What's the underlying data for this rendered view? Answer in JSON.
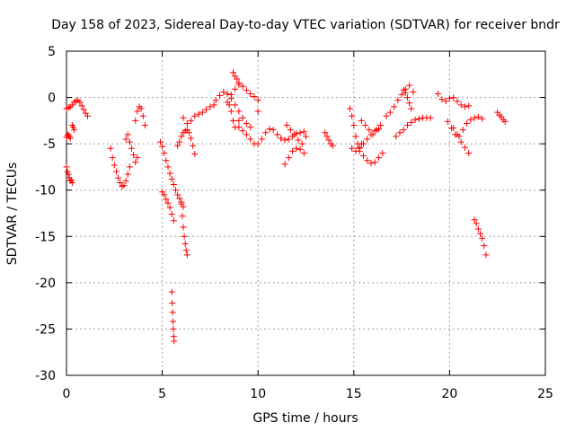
{
  "chart_data": {
    "type": "scatter",
    "title": "Day 158 of 2023, Sidereal Day-to-day VTEC variation (SDTVAR) for receiver bndr",
    "xlabel": "GPS time / hours",
    "ylabel": "SDTVAR / TECUs",
    "xlim": [
      0,
      25
    ],
    "ylim": [
      -30,
      5
    ],
    "xticks": [
      0,
      5,
      10,
      15,
      20,
      25
    ],
    "yticks": [
      -30,
      -25,
      -20,
      -15,
      -10,
      -5,
      0,
      5
    ],
    "xtick_labels": [
      "0",
      "5",
      "10",
      "15",
      "20",
      "25"
    ],
    "ytick_labels": [
      "-30",
      "-25",
      "-20",
      "-15",
      "-10",
      "-5",
      "0",
      "5"
    ],
    "grid": true,
    "marker": "+",
    "color": "#ff0000",
    "series": [
      {
        "name": "s1",
        "x": [
          0.0,
          0.1,
          0.2,
          0.3,
          0.4,
          0.5,
          0.6,
          0.7,
          0.8,
          0.9,
          1.0,
          1.1
        ],
        "y": [
          -1.2,
          -1.1,
          -1.0,
          -0.8,
          -0.5,
          -0.4,
          -0.3,
          -0.5,
          -0.9,
          -1.3,
          -1.7,
          -2.0
        ]
      },
      {
        "name": "s2",
        "x": [
          0.0,
          0.05,
          0.1,
          0.15,
          0.2
        ],
        "y": [
          -4.3,
          -4.1,
          -4.0,
          -4.2,
          -4.4
        ]
      },
      {
        "name": "s3",
        "x": [
          0.3,
          0.35,
          0.4
        ],
        "y": [
          -3.0,
          -3.2,
          -3.5
        ]
      },
      {
        "name": "s4",
        "x": [
          0.0,
          0.05,
          0.1,
          0.15,
          0.2,
          0.25,
          0.3
        ],
        "y": [
          -7.5,
          -8.0,
          -8.3,
          -8.7,
          -9.0,
          -8.9,
          -9.2
        ]
      },
      {
        "name": "s5",
        "x": [
          2.3,
          2.4,
          2.5,
          2.6,
          2.7,
          2.8,
          2.9,
          3.0,
          3.1,
          3.2,
          3.3
        ],
        "y": [
          -5.5,
          -6.5,
          -7.3,
          -8.0,
          -8.7,
          -9.2,
          -9.6,
          -9.5,
          -9.0,
          -8.3,
          -7.5
        ]
      },
      {
        "name": "s6",
        "x": [
          3.1,
          3.2,
          3.3,
          3.4,
          3.5,
          3.6,
          3.7
        ],
        "y": [
          -4.5,
          -4.0,
          -4.8,
          -5.5,
          -6.2,
          -7.0,
          -6.5
        ]
      },
      {
        "name": "s7",
        "x": [
          3.6,
          3.7,
          3.8,
          3.9,
          4.0,
          4.1
        ],
        "y": [
          -2.5,
          -1.5,
          -1.0,
          -1.2,
          -2.0,
          -3.0
        ]
      },
      {
        "name": "s8",
        "x": [
          4.9,
          5.0,
          5.1,
          5.2,
          5.3,
          5.4,
          5.5,
          5.6,
          5.7,
          5.8,
          5.9,
          6.0,
          6.1
        ],
        "y": [
          -4.8,
          -5.3,
          -6.0,
          -6.8,
          -7.5,
          -8.2,
          -8.8,
          -9.4,
          -10.0,
          -10.5,
          -10.9,
          -11.3,
          -11.8
        ]
      },
      {
        "name": "s9",
        "x": [
          5.0,
          5.1,
          5.2,
          5.3,
          5.4,
          5.5,
          5.6
        ],
        "y": [
          -10.2,
          -10.5,
          -11.0,
          -11.4,
          -11.9,
          -12.6,
          -13.3
        ]
      },
      {
        "name": "s10",
        "x": [
          6.0,
          6.05,
          6.1,
          6.15,
          6.2,
          6.25,
          6.3
        ],
        "y": [
          -11.5,
          -12.8,
          -14.0,
          -15.0,
          -15.8,
          -16.5,
          -17.0
        ]
      },
      {
        "name": "s11",
        "x": [
          5.5,
          5.52,
          5.54,
          5.56,
          5.58,
          5.6,
          5.62
        ],
        "y": [
          -21.0,
          -22.2,
          -23.2,
          -24.2,
          -25.0,
          -25.8,
          -26.3
        ]
      },
      {
        "name": "s12",
        "x": [
          5.8,
          5.9,
          6.0,
          6.1,
          6.2,
          6.3,
          6.4,
          6.5,
          6.6,
          6.7
        ],
        "y": [
          -5.2,
          -4.8,
          -4.2,
          -3.8,
          -3.6,
          -3.5,
          -3.8,
          -4.4,
          -5.2,
          -6.1
        ]
      },
      {
        "name": "s13",
        "x": [
          6.1,
          6.3,
          6.5,
          6.7,
          6.9,
          7.1,
          7.3,
          7.5,
          7.7
        ],
        "y": [
          -2.2,
          -2.8,
          -2.5,
          -2.0,
          -1.8,
          -1.6,
          -1.3,
          -1.0,
          -0.8
        ]
      },
      {
        "name": "s14",
        "x": [
          7.8,
          8.0,
          8.2,
          8.4,
          8.6,
          8.8,
          9.0,
          9.2,
          9.4,
          9.6
        ],
        "y": [
          -0.3,
          0.2,
          0.6,
          0.4,
          -0.1,
          -0.8,
          -1.5,
          -2.2,
          -2.8,
          -3.2
        ]
      },
      {
        "name": "s15",
        "x": [
          8.4,
          8.6,
          8.8,
          9.0,
          9.2,
          9.4,
          9.6,
          9.8,
          10.0
        ],
        "y": [
          -0.5,
          0.3,
          0.9,
          1.4,
          1.2,
          0.8,
          0.4,
          0.1,
          -0.3
        ]
      },
      {
        "name": "s16",
        "x": [
          8.7,
          8.8,
          8.9,
          9.0
        ],
        "y": [
          2.7,
          2.3,
          2.0,
          1.6
        ]
      },
      {
        "name": "s17",
        "x": [
          8.5,
          8.6,
          8.7,
          8.8,
          9.0
        ],
        "y": [
          -0.8,
          -1.5,
          -2.5,
          -3.2,
          -2.5
        ]
      },
      {
        "name": "s18",
        "x": [
          9.0,
          9.2,
          9.4,
          9.6,
          9.8,
          10.0,
          10.2,
          10.4,
          10.6,
          10.8,
          11.0,
          11.2
        ],
        "y": [
          -3.2,
          -3.6,
          -4.0,
          -4.5,
          -5.0,
          -5.0,
          -4.5,
          -3.8,
          -3.4,
          -3.5,
          -4.0,
          -4.4
        ]
      },
      {
        "name": "s19",
        "x": [
          10.0
        ],
        "y": [
          -1.5
        ]
      },
      {
        "name": "s20",
        "x": [
          11.2,
          11.4,
          11.6,
          11.8,
          12.0,
          12.2,
          12.4
        ],
        "y": [
          -4.4,
          -4.6,
          -4.5,
          -4.2,
          -3.9,
          -3.8,
          -3.7
        ]
      },
      {
        "name": "s21",
        "x": [
          11.4,
          11.6,
          11.8,
          12.0,
          12.2,
          12.4
        ],
        "y": [
          -7.2,
          -6.5,
          -5.8,
          -5.5,
          -5.6,
          -6.0
        ]
      },
      {
        "name": "s22",
        "x": [
          11.5,
          11.7,
          11.9,
          12.1,
          12.3,
          12.5
        ],
        "y": [
          -3.0,
          -3.5,
          -4.0,
          -4.6,
          -5.0,
          -4.2
        ]
      },
      {
        "name": "s23",
        "x": [
          13.5,
          13.6,
          13.7,
          13.8,
          13.9
        ],
        "y": [
          -3.8,
          -4.2,
          -4.6,
          -5.0,
          -5.2
        ]
      },
      {
        "name": "s24",
        "x": [
          14.8,
          14.9,
          15.0,
          15.1,
          15.2,
          15.3,
          15.4
        ],
        "y": [
          -1.2,
          -2.0,
          -3.0,
          -4.2,
          -5.0,
          -5.4,
          -5.0
        ]
      },
      {
        "name": "s25",
        "x": [
          14.9,
          15.1,
          15.3,
          15.5,
          15.7,
          15.9,
          16.1,
          16.3
        ],
        "y": [
          -5.5,
          -5.8,
          -5.5,
          -5.0,
          -4.5,
          -4.0,
          -3.6,
          -3.4
        ]
      },
      {
        "name": "s26",
        "x": [
          15.3,
          15.5,
          15.7,
          15.9,
          16.1,
          16.3,
          16.5
        ],
        "y": [
          -5.8,
          -6.3,
          -6.8,
          -7.1,
          -7.0,
          -6.5,
          -6.0
        ]
      },
      {
        "name": "s27",
        "x": [
          15.4,
          15.6,
          15.8,
          16.0,
          16.2,
          16.4
        ],
        "y": [
          -2.5,
          -3.0,
          -3.5,
          -4.0,
          -3.5,
          -3.0
        ]
      },
      {
        "name": "s28",
        "x": [
          16.7,
          16.9,
          17.1,
          17.3,
          17.5,
          17.7,
          17.9,
          18.1
        ],
        "y": [
          -2.0,
          -1.6,
          -1.0,
          -0.3,
          0.3,
          0.9,
          1.3,
          0.6
        ]
      },
      {
        "name": "s29",
        "x": [
          17.2,
          17.4,
          17.6,
          17.8,
          18.0,
          18.2,
          18.4,
          18.6,
          18.8,
          19.0
        ],
        "y": [
          -4.2,
          -3.8,
          -3.5,
          -3.0,
          -2.7,
          -2.4,
          -2.3,
          -2.2,
          -2.2,
          -2.2
        ]
      },
      {
        "name": "s30",
        "x": [
          17.6,
          17.7,
          17.8,
          17.9,
          18.0
        ],
        "y": [
          0.8,
          0.5,
          0.0,
          -0.6,
          -1.2
        ]
      },
      {
        "name": "s31",
        "x": [
          19.4,
          19.6,
          19.8,
          20.0,
          20.2,
          20.4,
          20.6,
          20.8,
          21.0
        ],
        "y": [
          0.4,
          -0.2,
          -0.4,
          -0.1,
          0.0,
          -0.4,
          -0.8,
          -1.0,
          -0.9
        ]
      },
      {
        "name": "s32",
        "x": [
          19.9,
          20.1,
          20.3,
          20.5,
          20.7,
          20.9,
          21.1,
          21.3,
          21.5,
          21.7
        ],
        "y": [
          -2.6,
          -3.3,
          -4.0,
          -4.2,
          -3.5,
          -2.8,
          -2.4,
          -2.2,
          -2.1,
          -2.3
        ]
      },
      {
        "name": "s33",
        "x": [
          20.2,
          20.4,
          20.6,
          20.8,
          21.0
        ],
        "y": [
          -3.3,
          -4.0,
          -4.8,
          -5.4,
          -6.0
        ]
      },
      {
        "name": "s34",
        "x": [
          21.3,
          21.4,
          21.5,
          21.6,
          21.7,
          21.8,
          21.9
        ],
        "y": [
          -13.2,
          -13.6,
          -14.2,
          -14.7,
          -15.2,
          -16.0,
          -17.0
        ]
      },
      {
        "name": "s35",
        "x": [
          22.5,
          22.6,
          22.7,
          22.8,
          22.9
        ],
        "y": [
          -1.6,
          -1.9,
          -2.1,
          -2.4,
          -2.6
        ]
      }
    ]
  }
}
